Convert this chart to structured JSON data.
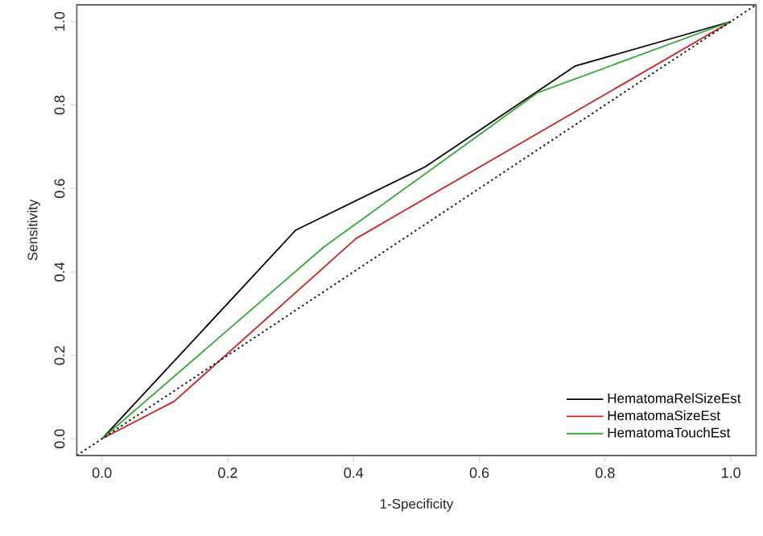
{
  "chart_data": {
    "type": "line",
    "xlabel": "1-Specificity",
    "ylabel": "Sensitivity",
    "xlim": [
      -0.04,
      1.04
    ],
    "ylim": [
      -0.04,
      1.04
    ],
    "xticks": [
      {
        "value": 0,
        "label": "0.0"
      },
      0.2,
      0.4,
      0.6,
      0.8,
      {
        "value": 1,
        "label": "1.0"
      }
    ],
    "yticks": [
      {
        "value": 0,
        "label": "0.0"
      },
      0.2,
      0.4,
      0.6,
      0.8,
      {
        "value": 1,
        "label": "1.0"
      }
    ],
    "grid": false,
    "legend": "bottom right",
    "marker": "none",
    "series": [
      {
        "name": "HematomaRelSizeEst",
        "color": "#000000",
        "x": [
          0,
          0.308,
          0.514,
          0.752,
          1
        ],
        "values": [
          0,
          0.5,
          0.652,
          0.893,
          1
        ]
      },
      {
        "name": "HematomaSizeEst",
        "color": "#cc2222",
        "x": [
          0,
          0.115,
          0.404,
          1
        ],
        "values": [
          0,
          0.09,
          0.48,
          1
        ]
      },
      {
        "name": "HematomaTouchEst",
        "color": "#33aa33",
        "x": [
          0,
          0.353,
          0.692,
          1
        ],
        "values": [
          0,
          0.46,
          0.829,
          1
        ]
      },
      {
        "color": "#000000",
        "line_style": "dotted",
        "x": [
          -0.04,
          1.04
        ],
        "values": [
          -0.04,
          1.04
        ]
      }
    ]
  }
}
